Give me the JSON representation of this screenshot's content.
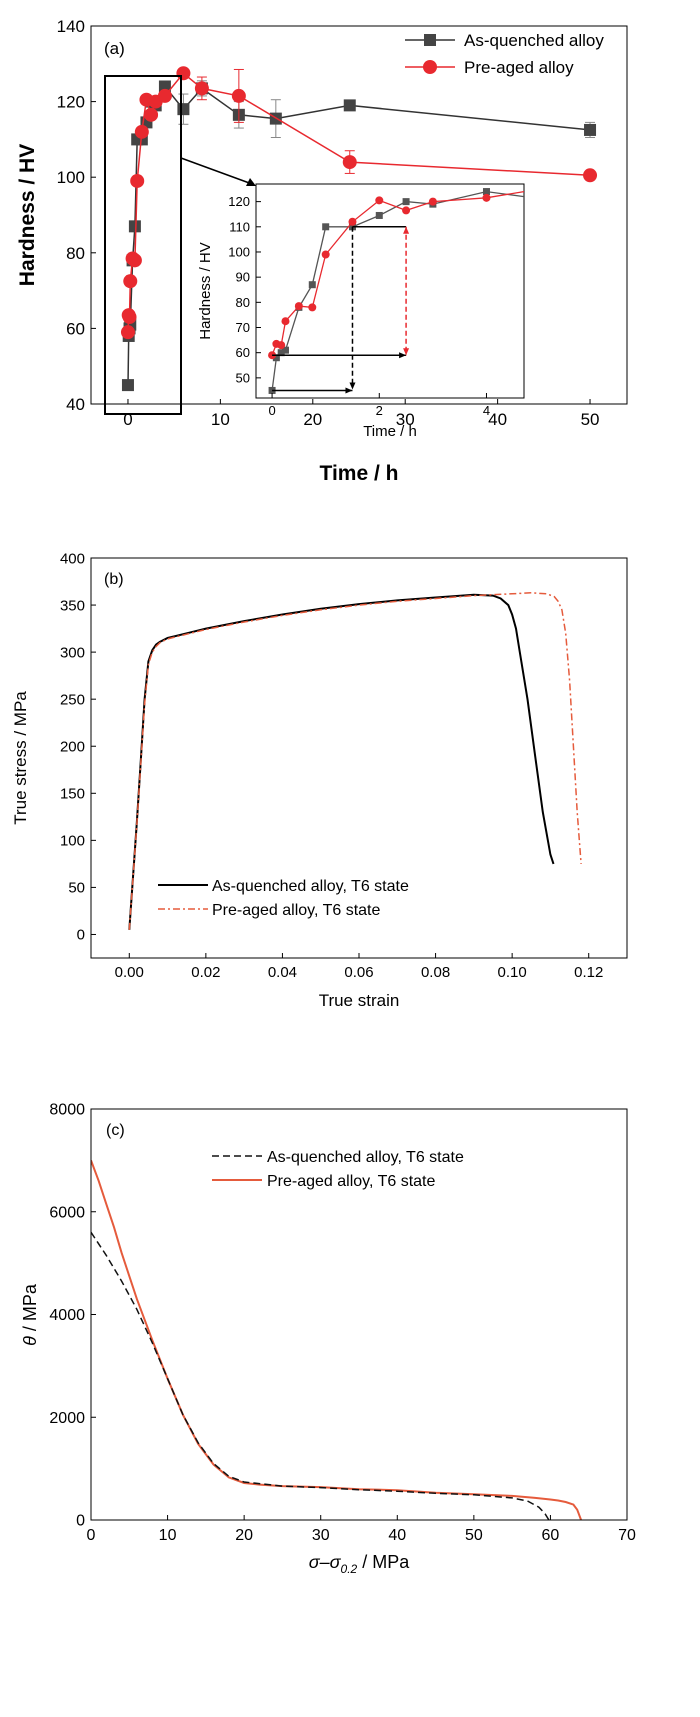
{
  "colors": {
    "black": "#333333",
    "red": "#e8292f",
    "orange": "#e55b3c",
    "grey": "#555555"
  },
  "chart_data": [
    {
      "type": "line",
      "panel_label": "(a)",
      "xlabel": "Time / h",
      "ylabel": "Hardness / HV",
      "xlim": [
        -4,
        54
      ],
      "ylim": [
        40,
        140
      ],
      "xticks": [
        0,
        10,
        20,
        30,
        40,
        50
      ],
      "yticks": [
        40,
        60,
        80,
        100,
        120,
        140
      ],
      "legend": "top-right",
      "series": [
        {
          "name": "As-quenched alloy",
          "marker": "square",
          "color": "#333333",
          "x": [
            0,
            0.08,
            0.17,
            0.25,
            0.5,
            0.75,
            1,
            1.5,
            2,
            2.5,
            3,
            4,
            6,
            8,
            12,
            16,
            24,
            50
          ],
          "y": [
            45,
            58,
            60,
            61,
            78,
            87,
            110,
            110,
            114.5,
            120,
            119,
            124,
            118,
            123.5,
            116.5,
            115.5,
            119,
            112.5
          ],
          "yerr": [
            0,
            0,
            0,
            0,
            0,
            0,
            0,
            0,
            0,
            0,
            0,
            0,
            4,
            2,
            3.5,
            5,
            1,
            2
          ]
        },
        {
          "name": "Pre-aged alloy",
          "marker": "circle",
          "color": "#e8292f",
          "x": [
            0,
            0.08,
            0.17,
            0.25,
            0.5,
            0.75,
            1,
            1.5,
            2,
            2.5,
            3,
            4,
            6,
            8,
            12,
            24,
            50
          ],
          "y": [
            59,
            63.5,
            63,
            72.5,
            78.5,
            78,
            99,
            112,
            120.5,
            116.5,
            120,
            121.5,
            127.5,
            123.5,
            121.5,
            104,
            100.5
          ],
          "yerr": [
            0,
            0,
            0,
            0,
            0,
            0,
            0,
            0,
            0,
            0,
            0,
            0,
            0,
            3,
            7,
            3,
            0
          ]
        }
      ],
      "inset": {
        "xlabel": "Time / h",
        "ylabel": "Hardness / HV",
        "xlim": [
          -0.3,
          4.7
        ],
        "ylim": [
          42,
          127
        ],
        "xticks": [
          0,
          2,
          4
        ],
        "yticks": [
          50,
          60,
          70,
          80,
          90,
          100,
          110,
          120
        ],
        "series": [
          {
            "name": "As-quenched alloy",
            "x": [
              0,
              0.08,
              0.17,
              0.25,
              0.5,
              0.75,
              1,
              1.5,
              2,
              2.5,
              3,
              4,
              4.7
            ],
            "y": [
              45,
              58,
              60,
              61,
              78,
              87,
              110,
              110,
              114.5,
              120,
              119,
              124,
              122
            ]
          },
          {
            "name": "Pre-aged alloy",
            "x": [
              0,
              0.08,
              0.17,
              0.25,
              0.5,
              0.75,
              1,
              1.5,
              2,
              2.5,
              3,
              4,
              4.7
            ],
            "y": [
              59,
              63.5,
              63,
              72.5,
              78.5,
              78,
              99,
              112,
              120.5,
              116.5,
              120,
              121.5,
              124
            ]
          }
        ]
      }
    },
    {
      "type": "line",
      "panel_label": "(b)",
      "xlabel": "True strain",
      "ylabel": "True stress / MPa",
      "xlim": [
        -0.01,
        0.13
      ],
      "ylim": [
        -25,
        400
      ],
      "xticks": [
        "0.00",
        "0.02",
        "0.04",
        "0.06",
        "0.08",
        "0.10",
        "0.12"
      ],
      "yticks": [
        0,
        50,
        100,
        150,
        200,
        250,
        300,
        350,
        400
      ],
      "legend": "bottom-left",
      "series": [
        {
          "name": "As-quenched alloy, T6 state",
          "style": "solid",
          "color": "#000000",
          "x": [
            0,
            0.002,
            0.003,
            0.004,
            0.005,
            0.006,
            0.007,
            0.008,
            0.01,
            0.015,
            0.02,
            0.03,
            0.04,
            0.05,
            0.06,
            0.07,
            0.08,
            0.09,
            0.095,
            0.097,
            0.099,
            0.1,
            0.101,
            0.102,
            0.104,
            0.106,
            0.108,
            0.11,
            0.1108
          ],
          "y": [
            5,
            120,
            185,
            250,
            290,
            302,
            308,
            311,
            315,
            320,
            325,
            333,
            340,
            346,
            351,
            355,
            358,
            361,
            360,
            357,
            350,
            340,
            325,
            300,
            250,
            190,
            130,
            85,
            75
          ]
        },
        {
          "name": "Pre-aged alloy, T6 state",
          "style": "dashdot",
          "color": "#e55b3c",
          "x": [
            0,
            0.002,
            0.003,
            0.004,
            0.005,
            0.006,
            0.007,
            0.008,
            0.01,
            0.015,
            0.02,
            0.03,
            0.04,
            0.05,
            0.06,
            0.07,
            0.08,
            0.09,
            0.1,
            0.105,
            0.109,
            0.111,
            0.112,
            0.113,
            0.114,
            0.115,
            0.116,
            0.117,
            0.118
          ],
          "y": [
            5,
            118,
            182,
            245,
            287,
            300,
            306,
            310,
            314,
            319,
            324,
            332,
            339,
            345,
            350,
            354,
            357,
            360,
            362,
            363,
            362,
            359,
            354,
            345,
            320,
            270,
            200,
            130,
            75
          ]
        }
      ]
    },
    {
      "type": "line",
      "panel_label": "(c)",
      "xlabel_main": "σ–σ",
      "xlabel_sub": "0.2",
      "xlabel_unit": " / MPa",
      "ylabel_sym": "θ",
      "ylabel_unit": " / MPa",
      "xlim": [
        0,
        70
      ],
      "ylim": [
        0,
        8000
      ],
      "xticks": [
        0,
        10,
        20,
        30,
        40,
        50,
        60,
        70
      ],
      "yticks": [
        0,
        2000,
        4000,
        6000,
        8000
      ],
      "legend": "top-right",
      "series": [
        {
          "name": "As-quenched alloy, T6 state",
          "style": "dashed",
          "color": "#111111",
          "x": [
            0,
            2,
            4,
            6,
            8,
            10,
            12,
            14,
            16,
            18,
            20,
            25,
            30,
            35,
            40,
            45,
            50,
            55,
            57,
            58.5,
            59.3,
            59.8
          ],
          "y": [
            5600,
            5150,
            4650,
            4100,
            3450,
            2750,
            2050,
            1500,
            1100,
            850,
            740,
            660,
            630,
            590,
            560,
            520,
            490,
            430,
            370,
            250,
            120,
            0
          ]
        },
        {
          "name": "Pre-aged alloy, T6 state",
          "style": "solid",
          "color": "#e55b3c",
          "x": [
            0,
            1,
            2,
            3,
            4,
            6,
            8,
            10,
            12,
            14,
            16,
            18,
            20,
            22,
            25,
            30,
            35,
            40,
            45,
            50,
            55,
            58,
            60,
            61,
            62,
            63,
            63.5,
            64
          ],
          "y": [
            7000,
            6600,
            6150,
            5700,
            5200,
            4300,
            3500,
            2750,
            2050,
            1480,
            1080,
            830,
            720,
            690,
            660,
            640,
            600,
            580,
            530,
            500,
            470,
            430,
            400,
            380,
            350,
            300,
            200,
            0
          ]
        }
      ]
    }
  ]
}
